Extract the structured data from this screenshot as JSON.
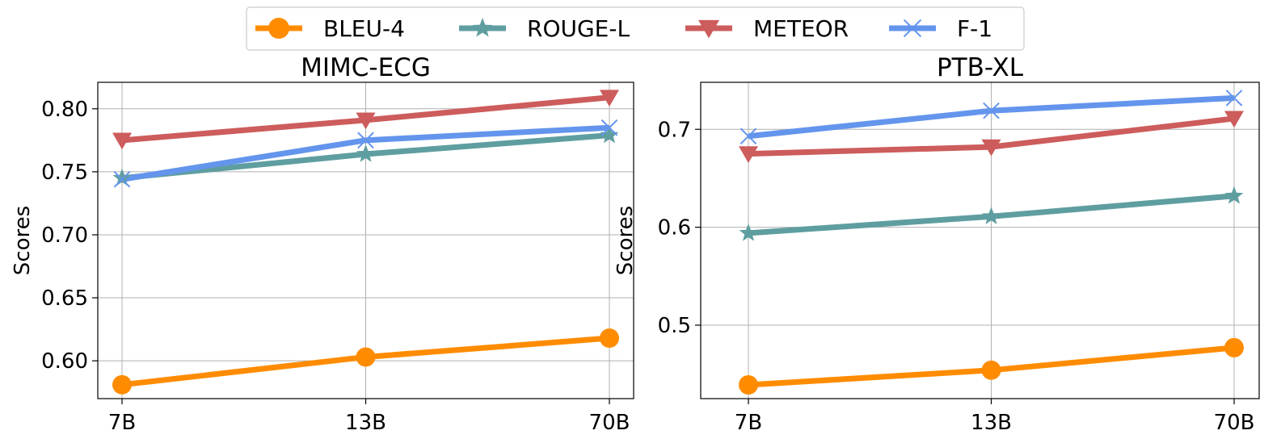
{
  "chart_data": [
    {
      "type": "line",
      "title": "MIMC-ECG",
      "xlabel": "",
      "ylabel": "Scores",
      "categories": [
        "7B",
        "13B",
        "70B"
      ],
      "ylim": [
        0.57,
        0.821
      ],
      "yticks": [
        "0.60",
        "0.65",
        "0.70",
        "0.75",
        "0.80"
      ],
      "ytick_values": [
        0.6,
        0.65,
        0.7,
        0.75,
        0.8
      ],
      "grid": true,
      "series": [
        {
          "name": "BLEU-4",
          "values": [
            0.581,
            0.603,
            0.618
          ]
        },
        {
          "name": "ROUGE-L",
          "values": [
            0.745,
            0.764,
            0.779
          ]
        },
        {
          "name": "METEOR",
          "values": [
            0.775,
            0.791,
            0.809
          ]
        },
        {
          "name": "F-1",
          "values": [
            0.744,
            0.775,
            0.785
          ]
        }
      ]
    },
    {
      "type": "line",
      "title": "PTB-XL",
      "xlabel": "",
      "ylabel": "Scores",
      "categories": [
        "7B",
        "13B",
        "70B"
      ],
      "ylim": [
        0.425,
        0.748
      ],
      "yticks": [
        "0.5",
        "0.6",
        "0.7"
      ],
      "ytick_values": [
        0.5,
        0.6,
        0.7
      ],
      "grid": true,
      "series": [
        {
          "name": "BLEU-4",
          "values": [
            0.439,
            0.454,
            0.477
          ]
        },
        {
          "name": "ROUGE-L",
          "values": [
            0.594,
            0.611,
            0.632
          ]
        },
        {
          "name": "METEOR",
          "values": [
            0.675,
            0.682,
            0.711
          ]
        },
        {
          "name": "F-1",
          "values": [
            0.693,
            0.719,
            0.732
          ]
        }
      ]
    }
  ],
  "legend": {
    "placement": "top-center",
    "entries": [
      {
        "name": "BLEU-4",
        "color": "#ff8c00",
        "marker": "circle"
      },
      {
        "name": "ROUGE-L",
        "color": "#5f9ea0",
        "marker": "star"
      },
      {
        "name": "METEOR",
        "color": "#cd5c5c",
        "marker": "triangle-down"
      },
      {
        "name": "F-1",
        "color": "#6495ed",
        "marker": "x"
      }
    ]
  }
}
